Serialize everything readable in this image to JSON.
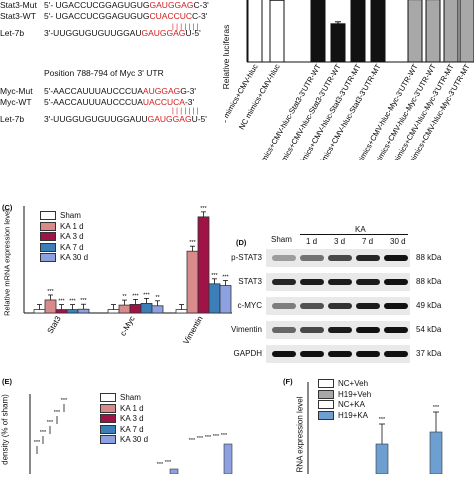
{
  "panelA": {
    "seqs": [
      {
        "label": "Stat3-Mut",
        "prefix": "5'- UGACCUCGGAGUGUG",
        "red": "GAUGGAG",
        "suffix": "C-3'"
      },
      {
        "label": "Stat3-WT",
        "prefix": "5'- UGACCUCGGAGUGUG",
        "red": "CUACCUC",
        "suffix": "C-3'"
      },
      {
        "label": "Let-7b",
        "prefix": "3'-UUGGUGUGUUGGAU",
        "red": "GAUGGAG",
        "suffix": "U-5'"
      }
    ],
    "myc_title": "Position 788-794 of Myc 3' UTR",
    "myc_seqs": [
      {
        "label": "Myc-Mut",
        "prefix": "5'-AACCAUUUAUCCCUA",
        "red": "AUGGAG",
        "suffix": "G-3'"
      },
      {
        "label": "Myc-WT",
        "prefix": "5'-AACCAUUUAUCCCUA",
        "red": "UACCUCA",
        "suffix": "-3'"
      },
      {
        "label": "Let-7b",
        "prefix": "3'-UUGGUGUGUUGGAUU",
        "red": "GAUGGAG",
        "suffix": "U-5'"
      }
    ]
  },
  "panelB": {
    "ylabel": "Relative luciferas",
    "xlabels": [
      "let-7b mimics+CMV-hluc",
      "NC mimics+CMV-hluc",
      "NC mimics+CMV-hluc-Stat3-3'UTR-WT",
      "let-7b mimics+CMV-hluc-Stat3-3'UTR-WT",
      "NC mimics+CMV-hluc-Stat3-3'UTR-MT",
      "let-7b mimics+CMV-hluc-Stat3-3'UTR-MT",
      "NC mimics+CMV-hluc-Myc-3'UTR-WT",
      "let-7b mimics+CMV-hluc-Myc-3'UTR-WT",
      "NC mimics+CMV-hluc-Myc-3'UTR-MT",
      "let-7b mimics+CMV-hluc-Myc-3'UTR-MT"
    ]
  },
  "panelC": {
    "letter": "(C)",
    "ylabel": "Relative mRNA expression level",
    "legend": [
      "Sham",
      "KA 1 d",
      "KA 3 d",
      "KA 7 d",
      "KA 30 d"
    ],
    "stars": "***",
    "stars2": "**"
  },
  "panelD": {
    "letter": "(D)",
    "ka_label": "KA",
    "sham_label": "Sham",
    "times": [
      "1 d",
      "3 d",
      "7 d",
      "30 d"
    ],
    "proteins": [
      "p-STAT3",
      "STAT3",
      "c-MYC",
      "Vimentin",
      "GAPDH"
    ],
    "mw": [
      "88 kDa",
      "88 kDa",
      "49 kDa",
      "54 kDa",
      "37 kDa"
    ]
  },
  "panelE": {
    "letter": "(E)",
    "ylabel": "density (% of sham)",
    "legend": [
      "Sham",
      "KA 1 d",
      "KA 3 d",
      "KA 7 d",
      "KA 30 d"
    ],
    "stars": "***"
  },
  "panelF": {
    "letter": "(F)",
    "ylabel": "RNA expression level",
    "legend": [
      "NC+Veh",
      "H19+Veh",
      "NC+KA",
      "H19+KA"
    ],
    "stars": "***"
  },
  "colors": {
    "sham": "#ffffff",
    "d1": "#d98b8b",
    "d3": "#a01347",
    "d7": "#3c7fb8",
    "d30": "#8da0e0",
    "black": "#111111",
    "grey": "#a8a8a8"
  },
  "chart_data": [
    {
      "type": "bar",
      "title": "",
      "xlabel": "",
      "ylabel": "Relative luciferas",
      "categories": [
        "let-7b mimics+CMV-hluc",
        "NC mimics+CMV-hluc",
        "NC mimics+CMV-hluc-Stat3-3'UTR-WT",
        "let-7b mimics+CMV-hluc-Stat3-3'UTR-WT",
        "NC mimics+CMV-hluc-Stat3-3'UTR-MT",
        "let-7b mimics+CMV-hluc-Stat3-3'UTR-MT",
        "NC mimics+CMV-hluc-Myc-3'UTR-WT",
        "let-7b mimics+CMV-hluc-Myc-3'UTR-WT",
        "NC mimics+CMV-hluc-Myc-3'UTR-MT",
        "let-7b mimics+CMV-hluc-Myc-3'UTR-MT"
      ],
      "values": [
        1.0,
        0.97,
        1.2,
        0.6,
        1.2,
        1.2,
        0.98,
        0.98,
        0.99,
        0.99
      ],
      "ylim": [
        0,
        1.2
      ]
    },
    {
      "type": "bar",
      "title": "",
      "xlabel": "",
      "ylabel": "Relative mRNA expression level",
      "categories": [
        "Stat3",
        "c-Myc",
        "Vimentin"
      ],
      "series": [
        {
          "name": "Sham",
          "values": [
            1.0,
            1.0,
            1.0
          ]
        },
        {
          "name": "KA 1 d",
          "values": [
            3.8,
            2.3,
            18.0
          ]
        },
        {
          "name": "KA 3 d",
          "values": [
            1.0,
            2.5,
            28.0
          ]
        },
        {
          "name": "KA 7 d",
          "values": [
            1.0,
            2.8,
            8.5
          ]
        },
        {
          "name": "KA 30 d",
          "values": [
            1.1,
            2.1,
            8.0
          ]
        }
      ],
      "ylim": [
        0,
        30
      ]
    }
  ]
}
